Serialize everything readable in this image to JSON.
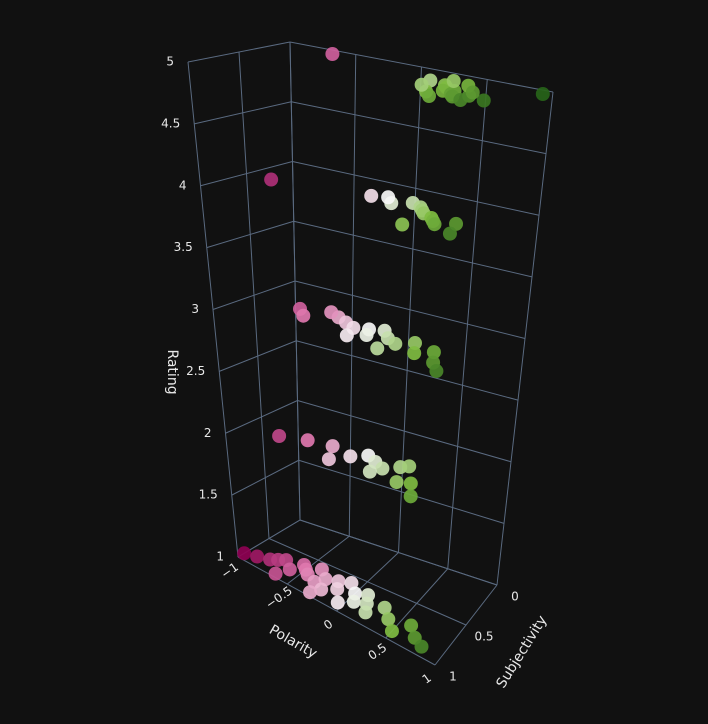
{
  "chart_data": {
    "type": "scatter3d",
    "x_title": "Polarity",
    "y_title": "Subjectivity",
    "z_title": "Rating",
    "xlim": [
      -1,
      1
    ],
    "ylim": [
      0,
      1
    ],
    "zlim": [
      1,
      5
    ],
    "xticks": [
      {
        "value": -1,
        "label": "−1"
      },
      {
        "value": -0.5,
        "label": "−0.5"
      },
      0,
      0.5,
      1
    ],
    "yticks": [
      0,
      0.5,
      1
    ],
    "zticks": [
      1,
      1.5,
      2,
      2.5,
      3,
      3.5,
      4,
      4.5,
      5
    ],
    "grid": true,
    "colorscale": [
      "#8e0152",
      "#de77ae",
      "#f7f7f7",
      "#7fbc41",
      "#276419"
    ],
    "x": [
      0.3,
      0.45,
      0.5,
      0.55,
      0.6,
      0.65,
      0.7,
      0.75,
      0.8,
      0.5,
      0.6,
      0.4,
      0.9,
      1.0,
      0.35,
      0.55,
      0.7,
      -0.6,
      0.2,
      0.3,
      0.35,
      0.4,
      0.5,
      0.55,
      0.6,
      0.7,
      0.8,
      0.1,
      0.0,
      -0.1,
      0.45,
      -0.8,
      -0.6,
      -0.5,
      -0.3,
      -0.2,
      -0.1,
      0,
      0.05,
      0.1,
      0.2,
      0.3,
      0.4,
      0.5,
      0.6,
      0.7,
      0.8,
      -0.05,
      0.25,
      -0.4,
      -0.7,
      -0.5,
      -0.3,
      -0.1,
      0.0,
      0.1,
      0.2,
      0.3,
      0.4,
      0.5,
      0.6,
      0.15,
      -0.2,
      0.35,
      -1,
      -0.9,
      -0.8,
      -0.75,
      -0.7,
      -0.6,
      -0.55,
      -0.5,
      -0.45,
      -0.4,
      -0.35,
      -0.3,
      -0.25,
      -0.2,
      -0.15,
      -0.1,
      -0.05,
      0,
      0.05,
      0.1,
      0.15,
      0.2,
      0.3,
      0.4,
      0.5,
      0.6,
      0.7,
      0.8,
      -0.65,
      -0.3
    ],
    "y": [
      0.3,
      0.35,
      0.4,
      0.5,
      0.45,
      0.55,
      0.6,
      0.5,
      0.65,
      0.6,
      0.7,
      0.2,
      0.55,
      0.1,
      0.45,
      0.25,
      0.4,
      0.1,
      0.3,
      0.35,
      0.4,
      0.45,
      0.5,
      0.55,
      0.6,
      0.5,
      0.7,
      0.4,
      0.3,
      0.35,
      0.75,
      0.5,
      0.5,
      0.6,
      0.45,
      0.5,
      0.55,
      0.5,
      0.6,
      0.45,
      0.55,
      0.6,
      0.5,
      0.65,
      0.55,
      0.7,
      0.8,
      0.7,
      0.75,
      0.4,
      0.7,
      0.6,
      0.55,
      0.6,
      0.5,
      0.55,
      0.6,
      0.5,
      0.7,
      0.65,
      0.8,
      0.7,
      0.75,
      0.45,
      0.9,
      0.85,
      0.8,
      0.75,
      0.7,
      0.8,
      0.65,
      0.7,
      0.75,
      0.6,
      0.8,
      0.7,
      0.85,
      0.65,
      0.75,
      0.6,
      0.9,
      0.7,
      0.8,
      0.65,
      0.75,
      0.85,
      0.7,
      0.8,
      0.9,
      0.75,
      0.85,
      0.9,
      0.95,
      0.95
    ],
    "z": [
      5,
      5,
      5,
      5,
      5,
      5,
      5,
      5,
      5,
      5,
      5,
      5,
      5,
      5,
      5,
      5,
      5,
      5,
      4,
      4,
      4,
      4,
      4,
      4,
      4,
      4,
      4,
      4,
      4,
      4,
      4,
      4,
      3,
      3,
      3,
      3,
      3,
      3,
      3,
      3,
      3,
      3,
      3,
      3,
      3,
      3,
      3,
      3,
      3,
      3,
      2,
      2,
      2,
      2,
      2,
      2,
      2,
      2,
      2,
      2,
      2,
      2,
      2,
      2,
      1,
      1,
      1,
      1,
      1,
      1,
      1,
      1,
      1,
      1,
      1,
      1,
      1,
      1,
      1,
      1,
      1,
      1,
      1,
      1,
      1,
      1,
      1,
      1,
      1,
      1,
      1,
      1,
      1,
      1
    ]
  }
}
